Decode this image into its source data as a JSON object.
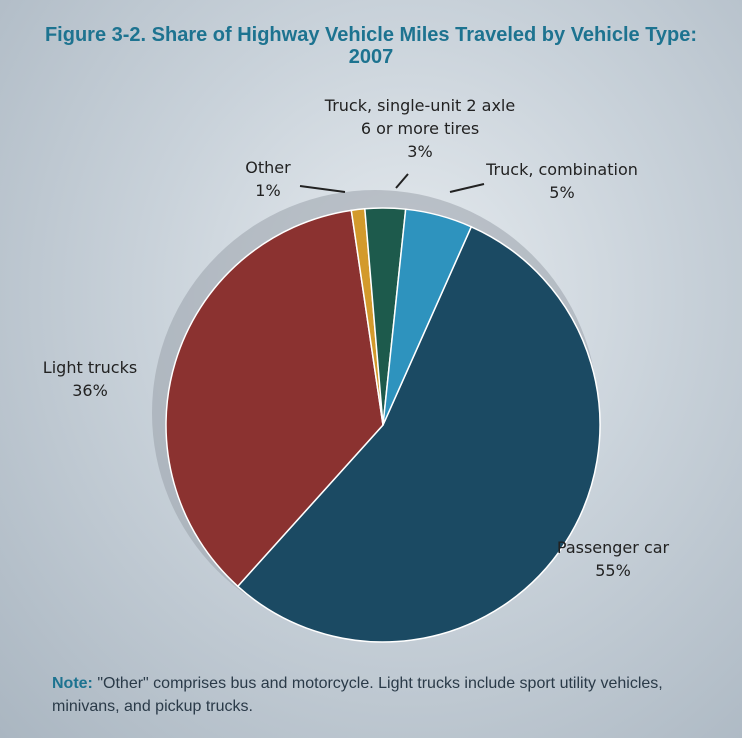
{
  "chart_data": {
    "type": "pie",
    "title": "Figure 3-2.  Share of Highway Vehicle Miles Traveled by Vehicle Type: 2007",
    "categories": [
      "Passenger car",
      "Light trucks",
      "Other",
      "Truck, single-unit 2 axle\n6 or more tires",
      "Truck, combination"
    ],
    "values": [
      55,
      36,
      1,
      3,
      5
    ],
    "value_labels": [
      "55%",
      "36%",
      "1%",
      "3%",
      "5%"
    ],
    "colors": [
      "#1b4a63",
      "#8b3230",
      "#d39a2c",
      "#1d5a4c",
      "#2e93be"
    ],
    "note_label": "Note:",
    "note": "\"Other\" comprises bus and motorcycle.  Light trucks include sport utility vehicles, minivans, and pickup trucks."
  }
}
